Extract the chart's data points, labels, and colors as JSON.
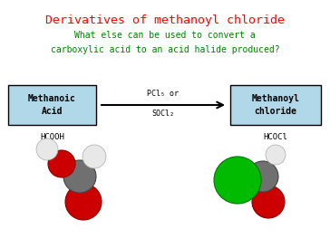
{
  "title": "Derivatives of methanoyl chloride",
  "title_color": "#ff0000",
  "subtitle_line1": "What else can be used to convert a",
  "subtitle_line2": "carboxylic acid to an acid halide produced?",
  "subtitle_color": "#008000",
  "box_left_label": "Methanoic\nAcid",
  "box_left_formula": "HCOOH",
  "box_right_label": "Methanoyl\nchloride",
  "box_right_formula": "HCOCl",
  "arrow_label_top": "PCl₅ or",
  "arrow_label_bottom": "SOCl₂",
  "box_color": "#b0d8e8",
  "box_edge_color": "#000000",
  "background_color": "#ffffff",
  "figsize": [
    3.64,
    2.74
  ],
  "dpi": 100
}
